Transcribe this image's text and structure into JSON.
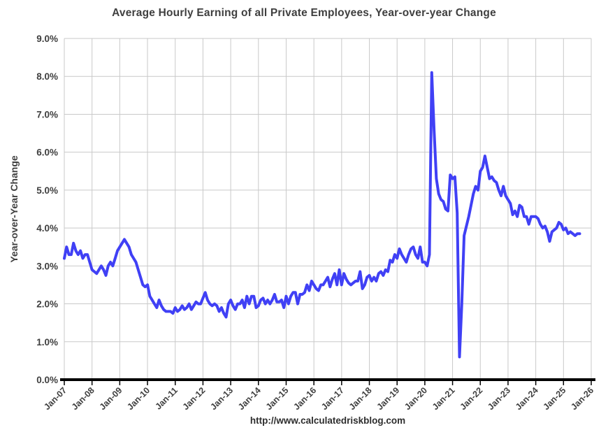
{
  "chart_data": {
    "type": "line",
    "title": "Average Hourly Earning of all Private Employees, Year-over-year Change",
    "xlabel": "",
    "ylabel": "Year-over-Year Change",
    "source_text": "http://www.calculatedriskblog.com",
    "ylim": [
      0,
      9
    ],
    "y_tick_labels": [
      "0.0%",
      "1.0%",
      "2.0%",
      "3.0%",
      "4.0%",
      "5.0%",
      "6.0%",
      "7.0%",
      "8.0%",
      "9.0%"
    ],
    "x_tick_labels": [
      "Jan-07",
      "Jan-08",
      "Jan-09",
      "Jan-10",
      "Jan-11",
      "Jan-12",
      "Jan-13",
      "Jan-14",
      "Jan-15",
      "Jan-16",
      "Jan-17",
      "Jan-18",
      "Jan-19",
      "Jan-20",
      "Jan-21",
      "Jan-22",
      "Jan-23",
      "Jan-24",
      "Jan-25",
      "Jan-26"
    ],
    "x_unit": "month",
    "x_start": "2007-01",
    "x_axis_end": "2026-01",
    "x_total_months": 228,
    "grid": true,
    "legend_position": "none",
    "colors": {
      "line": "#4040F5",
      "grid": "#C9C9C9",
      "axis": "#000000",
      "text": "#3F3F3F"
    },
    "series": [
      {
        "name": "Average Hourly Earnings, Year-over-year Change (%)",
        "frequency": "monthly",
        "values": [
          3.2,
          3.5,
          3.3,
          3.3,
          3.6,
          3.4,
          3.3,
          3.4,
          3.2,
          3.3,
          3.3,
          3.1,
          2.9,
          2.85,
          2.8,
          2.9,
          3.0,
          2.9,
          2.75,
          3.0,
          3.1,
          3.0,
          3.2,
          3.4,
          3.5,
          3.6,
          3.7,
          3.6,
          3.5,
          3.3,
          3.2,
          3.1,
          2.9,
          2.7,
          2.5,
          2.45,
          2.5,
          2.2,
          2.1,
          2.0,
          1.9,
          2.1,
          1.95,
          1.85,
          1.8,
          1.8,
          1.8,
          1.75,
          1.9,
          1.8,
          1.85,
          1.95,
          1.85,
          1.9,
          2.0,
          1.85,
          1.95,
          2.05,
          2.0,
          2.0,
          2.15,
          2.3,
          2.1,
          2.0,
          1.95,
          2.0,
          1.95,
          1.8,
          1.9,
          1.75,
          1.65,
          2.0,
          2.1,
          1.95,
          1.85,
          2.0,
          2.0,
          2.1,
          1.9,
          2.2,
          2.0,
          2.2,
          2.2,
          1.9,
          1.95,
          2.1,
          2.15,
          2.0,
          2.1,
          2.0,
          2.1,
          2.25,
          2.05,
          2.05,
          2.1,
          1.9,
          2.2,
          2.0,
          2.2,
          2.3,
          2.3,
          2.0,
          2.25,
          2.25,
          2.3,
          2.5,
          2.35,
          2.6,
          2.5,
          2.4,
          2.35,
          2.5,
          2.5,
          2.6,
          2.7,
          2.45,
          2.65,
          2.8,
          2.5,
          2.9,
          2.5,
          2.8,
          2.65,
          2.55,
          2.5,
          2.55,
          2.6,
          2.6,
          2.85,
          2.4,
          2.5,
          2.7,
          2.75,
          2.6,
          2.7,
          2.6,
          2.8,
          2.85,
          2.75,
          2.9,
          2.85,
          3.15,
          3.1,
          3.3,
          3.2,
          3.45,
          3.3,
          3.2,
          3.1,
          3.3,
          3.45,
          3.5,
          3.3,
          3.2,
          3.5,
          3.1,
          3.1,
          3.0,
          3.3,
          8.1,
          6.6,
          5.3,
          4.9,
          4.75,
          4.7,
          4.5,
          4.45,
          5.4,
          5.3,
          5.35,
          4.4,
          0.6,
          2.0,
          3.8,
          4.05,
          4.3,
          4.6,
          4.9,
          5.1,
          5.0,
          5.5,
          5.6,
          5.9,
          5.6,
          5.3,
          5.35,
          5.25,
          5.2,
          5.0,
          4.85,
          5.1,
          4.85,
          4.75,
          4.65,
          4.35,
          4.45,
          4.3,
          4.6,
          4.55,
          4.3,
          4.3,
          4.1,
          4.3,
          4.3,
          4.3,
          4.25,
          4.1,
          4.0,
          4.05,
          3.9,
          3.65,
          3.9,
          3.95,
          4.0,
          4.15,
          4.1,
          3.95,
          4.0,
          3.85,
          3.9,
          3.85,
          3.8,
          3.85,
          3.85
        ]
      }
    ]
  }
}
